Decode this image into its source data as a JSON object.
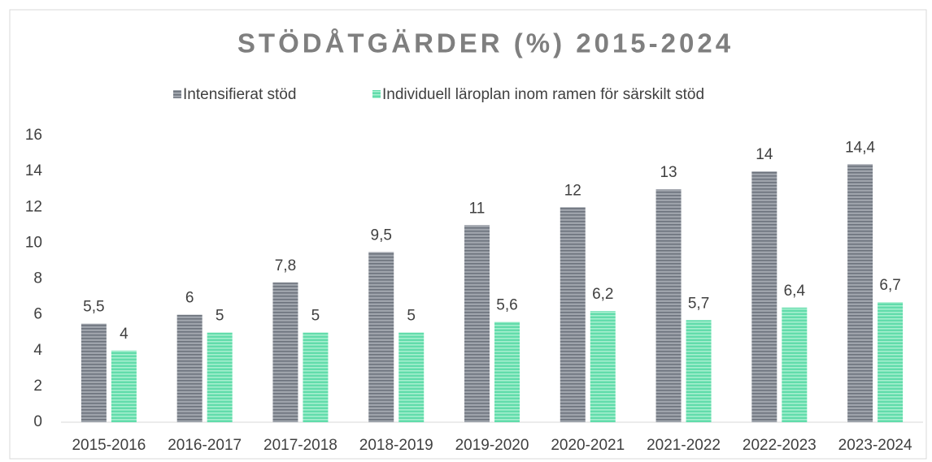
{
  "chart_data": {
    "type": "bar",
    "title": "STÖDÅTGÄRDER (%) 2015-2024",
    "categories": [
      "2015-2016",
      "2016-2017",
      "2017-2018",
      "2018-2019",
      "2019-2020",
      "2020-2021",
      "2021-2022",
      "2022-2023",
      "2023-2024"
    ],
    "series": [
      {
        "name": "Intensifierat stöd",
        "color": "#9ea3ab",
        "values": [
          5.5,
          6,
          7.8,
          9.5,
          11,
          12,
          13,
          14,
          14.4
        ],
        "value_labels": [
          "5,5",
          "6",
          "7,8",
          "9,5",
          "11",
          "12",
          "13",
          "14",
          "14,4"
        ]
      },
      {
        "name": "Individuell läroplan inom ramen för särskilt stöd",
        "color": "#62dcab",
        "values": [
          4,
          5,
          5,
          5,
          5.6,
          6.2,
          5.7,
          6.4,
          6.7
        ],
        "value_labels": [
          "4",
          "5",
          "5",
          "5",
          "5,6",
          "6,2",
          "5,7",
          "6,4",
          "6,7"
        ]
      }
    ],
    "ylim": [
      0,
      16
    ],
    "yticks": [
      0,
      2,
      4,
      6,
      8,
      10,
      12,
      14,
      16
    ],
    "grid": false,
    "legend": "top"
  }
}
